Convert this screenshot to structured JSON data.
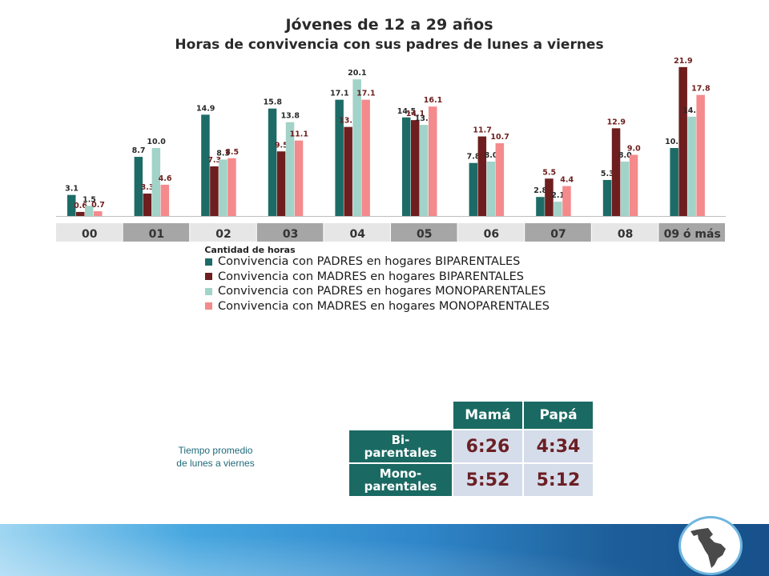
{
  "title_line1": "Jóvenes de 12 a 29 años",
  "title_line2": "Horas de convivencia con sus padres de lunes a viernes",
  "chart_data": {
    "type": "bar",
    "title": "Jóvenes de 12 a 29 años — Horas de convivencia con sus padres de lunes a viernes",
    "xlabel": "Cantidad de horas",
    "ylabel": "",
    "ylim": [
      0,
      23
    ],
    "categories": [
      "00",
      "01",
      "02",
      "03",
      "04",
      "05",
      "06",
      "07",
      "08",
      "09 ó más"
    ],
    "series": [
      {
        "name": "Convivencia con PADRES en hogares BIPARENTALES",
        "color": "#1d6b66",
        "values": [
          3.1,
          8.7,
          14.9,
          15.8,
          17.1,
          14.5,
          7.8,
          2.8,
          5.3,
          10.0
        ]
      },
      {
        "name": "Convivencia con MADRES en hogares BIPARENTALES",
        "color": "#6e1e1e",
        "values": [
          0.6,
          3.3,
          7.3,
          9.5,
          13.1,
          14.1,
          11.7,
          5.5,
          12.9,
          21.9
        ]
      },
      {
        "name": "Convivencia con PADRES en hogares MONOPARENTALES",
        "color": "#a2d3c8",
        "values": [
          1.5,
          10.0,
          8.3,
          13.8,
          20.1,
          13.4,
          8.0,
          2.1,
          8.0,
          14.6
        ]
      },
      {
        "name": "Convivencia con MADRES en hogares MONOPARENTALES",
        "color": "#f48a8c",
        "values": [
          0.7,
          4.6,
          8.5,
          11.1,
          17.1,
          16.1,
          10.7,
          4.4,
          9.0,
          17.8
        ]
      }
    ],
    "label_colors": [
      "#2a2a2a",
      "#6e1e1e",
      "#2a2a2a",
      "#6e1e1e"
    ],
    "legend": "bottom",
    "grid": false
  },
  "note": {
    "line1": "Tiempo promedio",
    "line2": "de lunes a viernes"
  },
  "avg_table": {
    "col1": "Mamá",
    "col2": "Papá",
    "rows": [
      {
        "label_1": "Bi-",
        "label_2": "parentales",
        "mama": "6:26",
        "papa": "4:34"
      },
      {
        "label_1": "Mono-",
        "label_2": "parentales",
        "mama": "5:52",
        "papa": "5:12"
      }
    ]
  },
  "colors": {
    "axis_band_light": "#e6e6e6",
    "axis_band_dark": "#a6a6a6",
    "table_header": "#1a6a63",
    "table_cell": "#d5dcea"
  }
}
